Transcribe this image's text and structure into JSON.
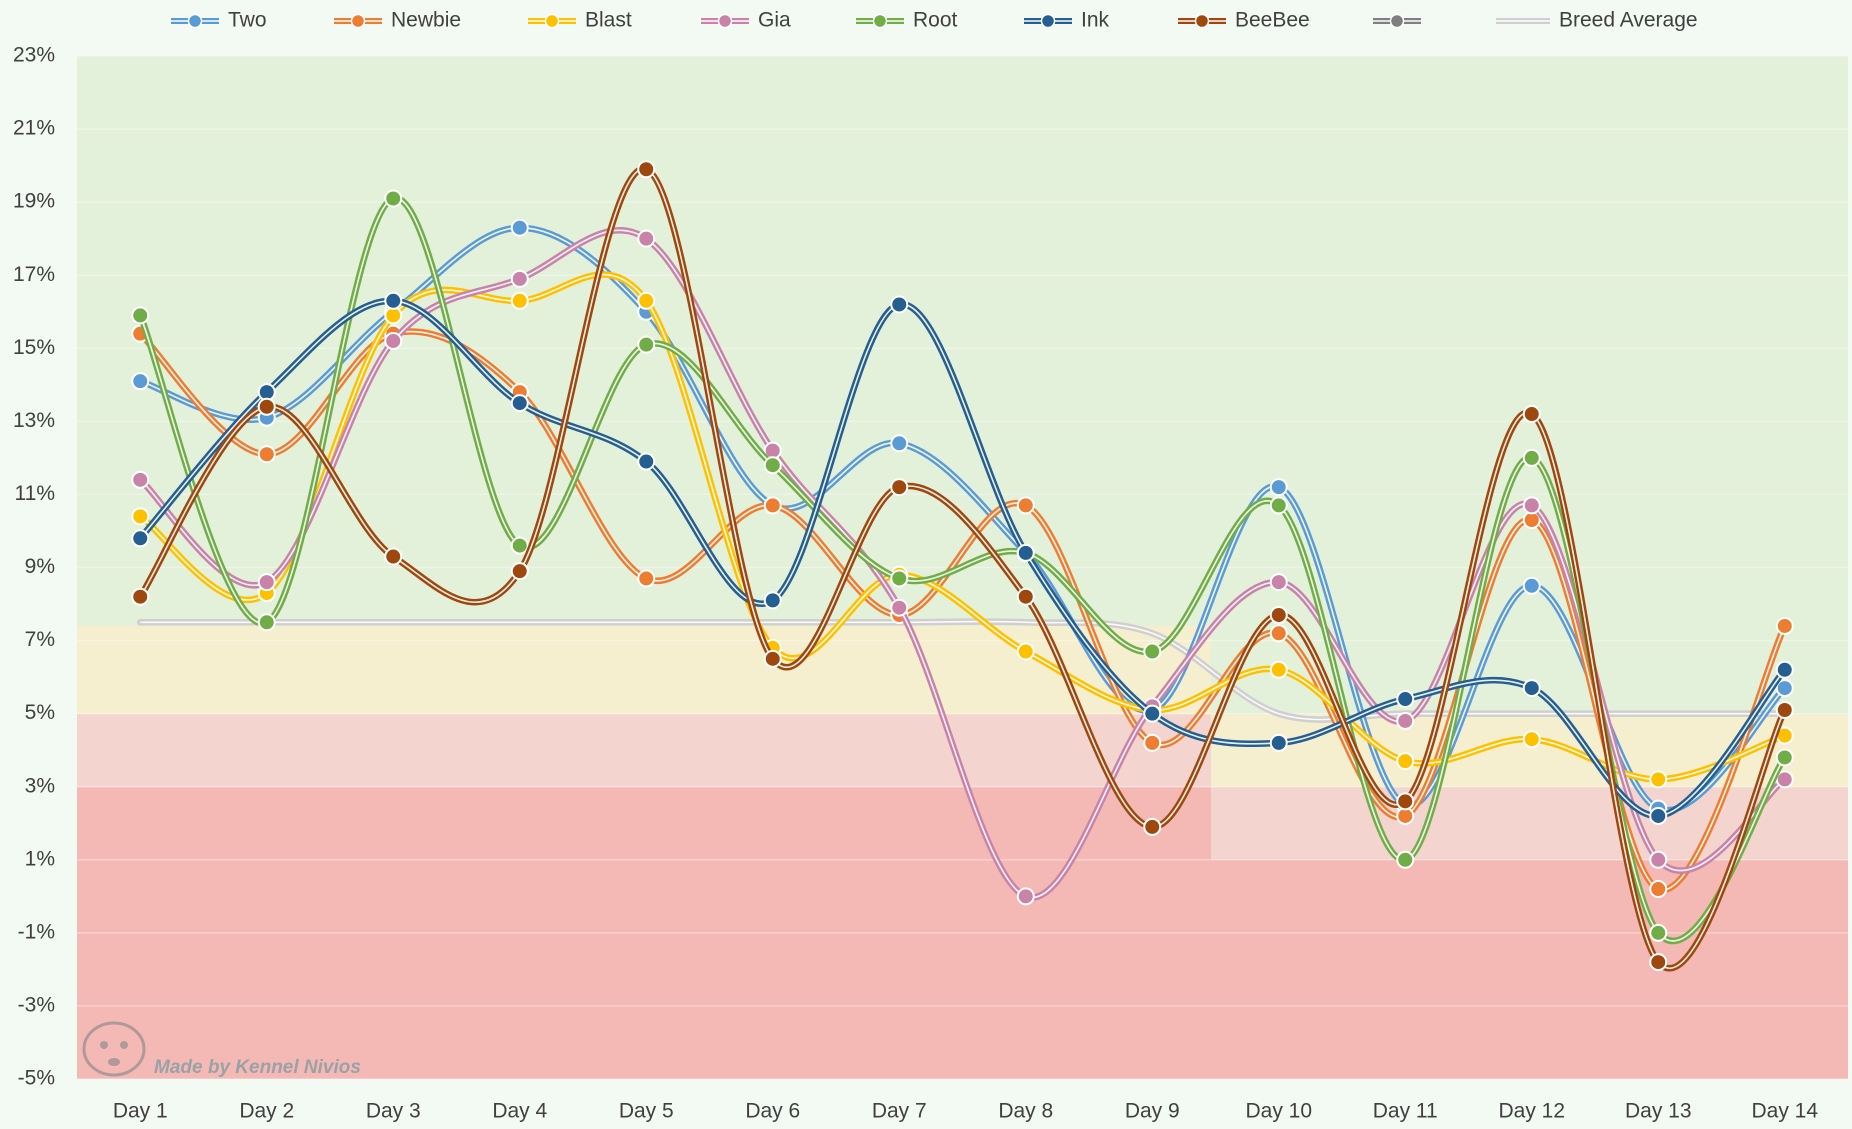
{
  "chart_data": {
    "type": "line",
    "smooth": true,
    "categories": [
      "Day 1",
      "Day 2",
      "Day 3",
      "Day 4",
      "Day 5",
      "Day 6",
      "Day 7",
      "Day 8",
      "Day 9",
      "Day 10",
      "Day 11",
      "Day 12",
      "Day 13",
      "Day 14"
    ],
    "ylim": [
      -5,
      23
    ],
    "yticks": [
      {
        "value": -5,
        "label": "-5%"
      },
      {
        "value": -3,
        "label": "-3%"
      },
      {
        "value": -1,
        "label": "-1%"
      },
      {
        "value": 1,
        "label": "1%"
      },
      {
        "value": 3,
        "label": "3%"
      },
      {
        "value": 5,
        "label": "5%"
      },
      {
        "value": 7,
        "label": "7%"
      },
      {
        "value": 9,
        "label": "9%"
      },
      {
        "value": 11,
        "label": "11%"
      },
      {
        "value": 13,
        "label": "13%"
      },
      {
        "value": 15,
        "label": "15%"
      },
      {
        "value": 17,
        "label": "17%"
      },
      {
        "value": 19,
        "label": "19%"
      },
      {
        "value": 21,
        "label": "21%"
      },
      {
        "value": 23,
        "label": "23%"
      }
    ],
    "grid": true,
    "legend": "top",
    "series": [
      {
        "name": "Two",
        "color": "#5b9bd5",
        "markers": true,
        "values": [
          14.1,
          13.1,
          16.0,
          18.3,
          16.0,
          10.7,
          12.4,
          9.4,
          5.1,
          11.2,
          2.5,
          8.5,
          2.4,
          5.7
        ]
      },
      {
        "name": "Newbie",
        "color": "#ed7d31",
        "markers": true,
        "values": [
          15.4,
          12.1,
          15.4,
          13.8,
          8.7,
          10.7,
          7.7,
          10.7,
          4.2,
          7.2,
          2.2,
          10.3,
          0.2,
          7.4
        ]
      },
      {
        "name": "Blast",
        "color": "#ffc000",
        "markers": true,
        "values": [
          10.4,
          8.3,
          15.9,
          16.3,
          16.3,
          6.8,
          8.8,
          6.7,
          5.1,
          6.2,
          3.7,
          4.3,
          3.2,
          4.4
        ]
      },
      {
        "name": "Gia",
        "color": "#c983a8",
        "markers": true,
        "values": [
          11.4,
          8.6,
          15.2,
          16.9,
          18.0,
          12.2,
          7.9,
          0.0,
          5.2,
          8.6,
          4.8,
          10.7,
          1.0,
          3.2
        ]
      },
      {
        "name": "Root",
        "color": "#70ad47",
        "markers": true,
        "values": [
          15.9,
          7.5,
          19.1,
          9.6,
          15.1,
          11.8,
          8.7,
          9.4,
          6.7,
          10.7,
          1.0,
          12.0,
          -1.0,
          3.8
        ]
      },
      {
        "name": "Ink",
        "color": "#255e91",
        "markers": true,
        "values": [
          9.8,
          13.8,
          16.3,
          13.5,
          11.9,
          8.1,
          16.2,
          9.4,
          5.0,
          4.2,
          5.4,
          5.7,
          2.2,
          6.2
        ]
      },
      {
        "name": "BeeBee",
        "color": "#9e480e",
        "markers": true,
        "values": [
          8.2,
          13.4,
          9.3,
          8.9,
          19.9,
          6.5,
          11.2,
          8.2,
          1.9,
          7.7,
          2.6,
          13.2,
          -1.8,
          5.1
        ]
      },
      {
        "color": "#7f7f7f",
        "markers": true,
        "values": [
          null,
          null,
          null,
          null,
          null,
          null,
          null,
          null,
          null,
          null,
          null,
          null,
          null,
          null
        ]
      },
      {
        "name": "Breed Average",
        "color": "#d0cece",
        "markers": false,
        "values": [
          7.5,
          7.5,
          7.5,
          7.5,
          7.5,
          7.5,
          7.5,
          7.5,
          7.2,
          5.0,
          5.0,
          5.0,
          5.0,
          5.0
        ]
      }
    ],
    "watermark": "Made by Kennel Nivios"
  }
}
